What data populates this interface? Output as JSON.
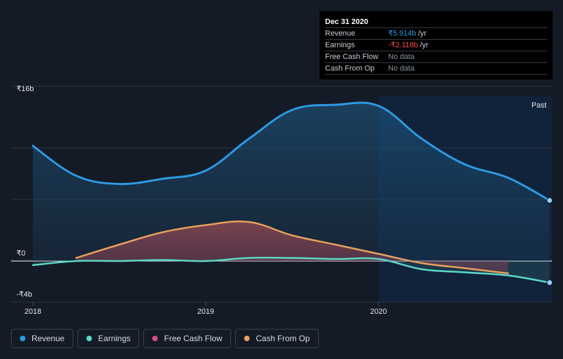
{
  "tooltip": {
    "date": "Dec 31 2020",
    "rows": [
      {
        "label": "Revenue",
        "value": "₹5.914b",
        "unit": "/yr"
      },
      {
        "label": "Earnings",
        "value": "-₹2.118b",
        "unit": "/yr"
      },
      {
        "label": "Free Cash Flow",
        "value": "No data",
        "unit": ""
      },
      {
        "label": "Cash From Op",
        "value": "No data",
        "unit": ""
      }
    ]
  },
  "past_label": "Past",
  "legend": [
    {
      "label": "Revenue",
      "color": "#2d9be3"
    },
    {
      "label": "Earnings",
      "color": "#5fd9c8"
    },
    {
      "label": "Free Cash Flow",
      "color": "#d44f7f"
    },
    {
      "label": "Cash From Op",
      "color": "#e8a15e"
    }
  ],
  "chart_data": {
    "type": "area",
    "y_tick_labels": [
      "₹16b",
      "₹0",
      "-₹4b"
    ],
    "ylim": [
      -4,
      16
    ],
    "xlim": [
      2018.0,
      2020.99
    ],
    "x_tick_labels": [
      "2018",
      "2019",
      "2020"
    ],
    "x_ticks": [
      2018,
      2019,
      2020
    ],
    "past_start": 2020.0,
    "series": [
      {
        "name": "Revenue",
        "color": "#2d9be3",
        "x": [
          2018.0,
          2018.25,
          2018.5,
          2018.75,
          2019.0,
          2019.25,
          2019.5,
          2019.75,
          2020.0,
          2020.25,
          2020.5,
          2020.75,
          2020.99
        ],
        "y": [
          11.2,
          8.3,
          7.5,
          8.0,
          8.8,
          11.9,
          14.7,
          15.2,
          15.1,
          11.9,
          9.4,
          8.1,
          5.9
        ]
      },
      {
        "name": "Earnings",
        "color": "#5fd9c8",
        "x": [
          2018.0,
          2018.25,
          2018.5,
          2018.75,
          2019.0,
          2019.25,
          2019.5,
          2019.75,
          2020.0,
          2020.25,
          2020.5,
          2020.75,
          2020.99
        ],
        "y": [
          -0.4,
          0.0,
          0.0,
          0.1,
          0.0,
          0.3,
          0.3,
          0.2,
          0.2,
          -0.8,
          -1.1,
          -1.4,
          -2.1
        ]
      },
      {
        "name": "Cash From Op",
        "color": "#e8a15e",
        "x": [
          2018.25,
          2018.5,
          2018.75,
          2019.0,
          2019.25,
          2019.5,
          2019.75,
          2020.0,
          2020.25,
          2020.5,
          2020.75
        ],
        "y": [
          0.3,
          1.6,
          2.8,
          3.5,
          3.8,
          2.5,
          1.6,
          0.7,
          -0.2,
          -0.7,
          -1.2
        ]
      }
    ]
  }
}
